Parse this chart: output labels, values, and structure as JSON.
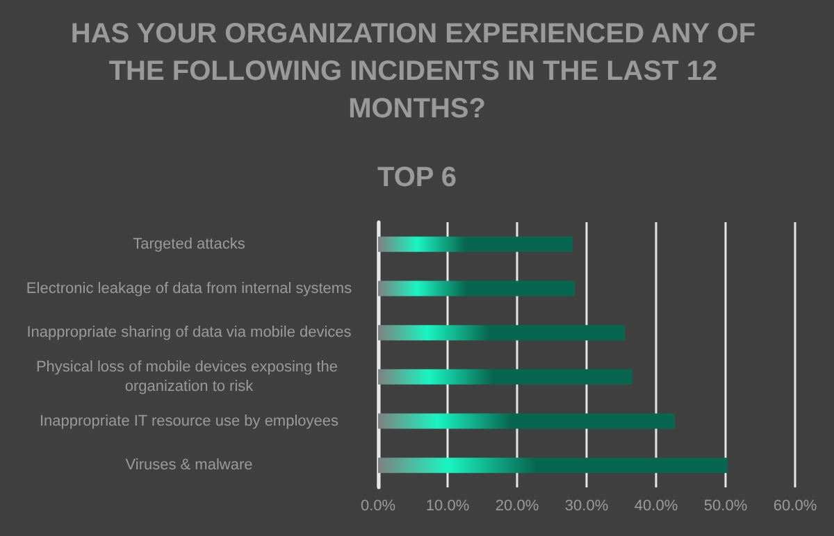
{
  "chart_data": {
    "type": "bar",
    "orientation": "horizontal",
    "title": "HAS YOUR ORGANIZATION EXPERIENCED ANY OF THE FOLLOWING INCIDENTS IN THE LAST 12 MONTHS?",
    "subtitle": "TOP 6",
    "categories": [
      "Targeted attacks",
      "Electronic leakage of data from internal systems",
      "Inappropriate sharing of data via mobile devices",
      "Physical loss of mobile devices exposing the organization to risk",
      "Inappropriate IT resource use by employees",
      "Viruses & malware"
    ],
    "values": [
      28.0,
      28.3,
      35.5,
      36.6,
      42.7,
      50.3
    ],
    "color": "#07664f",
    "xlim": [
      0,
      60
    ],
    "xticks": [
      {
        "value": 0,
        "label": "0.0%"
      },
      {
        "value": 10,
        "label": "10.0%"
      },
      {
        "value": 20,
        "label": "20.0%"
      },
      {
        "value": 30,
        "label": "30.0%"
      },
      {
        "value": 40,
        "label": "40.0%"
      },
      {
        "value": 50,
        "label": "50.0%"
      },
      {
        "value": 60,
        "label": "60.0%"
      }
    ],
    "grid": "x"
  }
}
